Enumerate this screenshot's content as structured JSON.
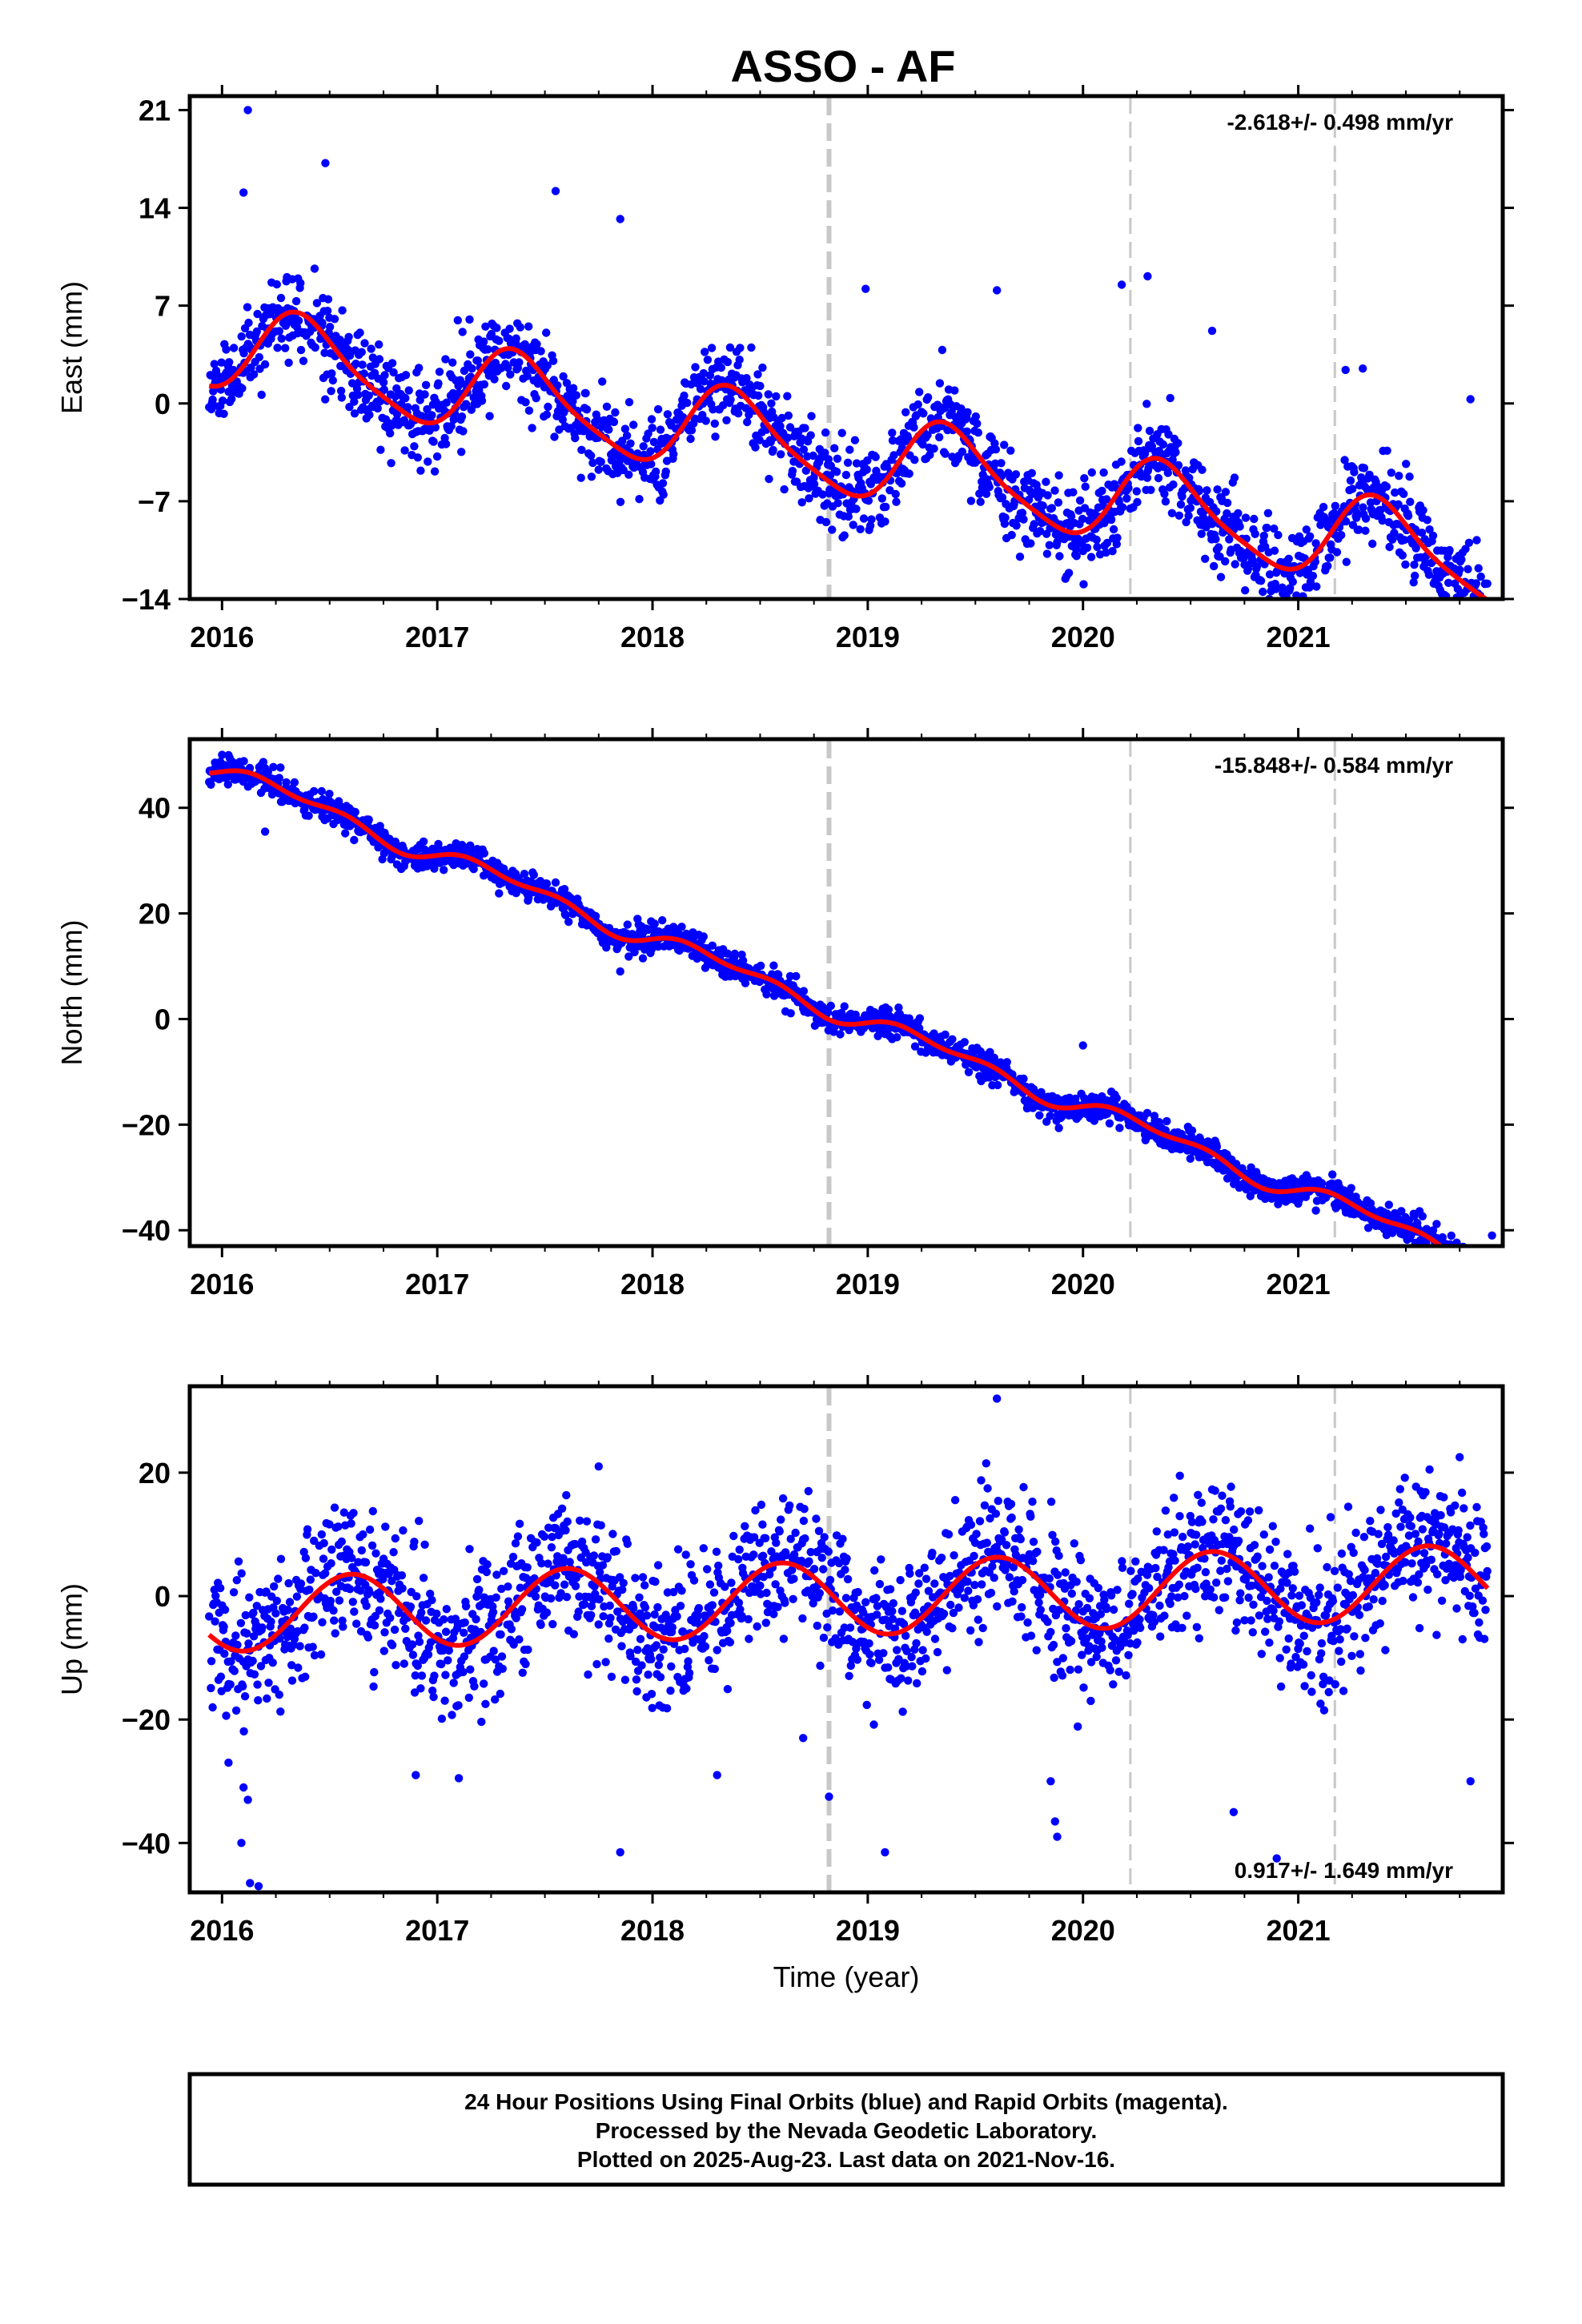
{
  "title": "ASSO - AF",
  "footer": {
    "lines": [
      "24 Hour Positions Using Final Orbits (blue) and Rapid Orbits (magenta).",
      "Processed by the Nevada Geodetic Laboratory.",
      "Plotted on 2025-Aug-23. Last data on 2021-Nov-16."
    ]
  },
  "colors": {
    "points": "#0000ff",
    "model": "#ff0000",
    "event_lines": "#c8c8c8",
    "frame": "#000000"
  },
  "chart_data": [
    {
      "type": "scatter",
      "component": "East",
      "ylabel": "East (mm)",
      "xlabel": "",
      "rate_label": "-2.618+/- 0.498 mm/yr",
      "rate_position": "top-right",
      "xlim": [
        2015.85,
        2021.95
      ],
      "ylim": [
        -14,
        22
      ],
      "x_ticks": [
        2016,
        2017,
        2018,
        2019,
        2020,
        2021
      ],
      "y_ticks": [
        21,
        14,
        7,
        0,
        -7,
        -14
      ],
      "event_lines": [
        {
          "x": 2018.82,
          "style": "major"
        },
        {
          "x": 2020.22,
          "style": "minor"
        },
        {
          "x": 2021.17,
          "style": "minor"
        }
      ],
      "model": {
        "offset": 4.0,
        "trend": -2.618,
        "annual_amp": 3.0,
        "annual_phase": 2016.38,
        "semiannual_amp": 0.6,
        "semiannual_phase": 2016.3,
        "noise": 1.6,
        "seed": 11
      },
      "outliers": [
        [
          2016.12,
          21.0
        ],
        [
          2016.48,
          17.2
        ],
        [
          2016.1,
          15.1
        ],
        [
          2017.55,
          15.2
        ],
        [
          2017.85,
          13.2
        ],
        [
          2018.99,
          8.2
        ],
        [
          2020.18,
          8.5
        ],
        [
          2020.3,
          9.1
        ],
        [
          2020.1,
          -10.2
        ],
        [
          2021.07,
          -11.2
        ],
        [
          2020.6,
          5.2
        ],
        [
          2021.8,
          0.3
        ],
        [
          2016.05,
          0.8
        ],
        [
          2019.6,
          8.1
        ],
        [
          2021.22,
          2.4
        ],
        [
          2021.3,
          2.5
        ]
      ]
    },
    {
      "type": "scatter",
      "component": "North",
      "ylabel": "North (mm)",
      "xlabel": "",
      "rate_label": "-15.848+/- 0.584 mm/yr",
      "rate_position": "top-right",
      "xlim": [
        2015.85,
        2021.95
      ],
      "ylim": [
        -43,
        53
      ],
      "x_ticks": [
        2016,
        2017,
        2018,
        2019,
        2020,
        2021
      ],
      "y_ticks": [
        40,
        20,
        0,
        -20,
        -40
      ],
      "event_lines": [
        {
          "x": 2018.82,
          "style": "major"
        },
        {
          "x": 2020.22,
          "style": "minor"
        },
        {
          "x": 2021.17,
          "style": "minor"
        }
      ],
      "model": {
        "offset": 47.0,
        "trend": -15.848,
        "annual_amp": 1.5,
        "annual_phase": 2016.3,
        "semiannual_amp": 1.0,
        "semiannual_phase": 2016.1,
        "noise": 1.3,
        "seed": 23
      },
      "outliers": [
        [
          2016.2,
          35.5
        ],
        [
          2017.85,
          9.0
        ],
        [
          2020.0,
          -5.0
        ],
        [
          2020.75,
          -31.0
        ],
        [
          2021.9,
          -41.0
        ]
      ]
    },
    {
      "type": "scatter",
      "component": "Up",
      "ylabel": "Up (mm)",
      "xlabel": "Time (year)",
      "rate_label": "0.917+/- 1.649 mm/yr",
      "rate_position": "bottom-right",
      "xlim": [
        2015.85,
        2021.95
      ],
      "ylim": [
        -48,
        34
      ],
      "x_ticks": [
        2016,
        2017,
        2018,
        2019,
        2020,
        2021
      ],
      "y_ticks": [
        20,
        0,
        -20,
        -40
      ],
      "event_lines": [
        {
          "x": 2018.82,
          "style": "major"
        },
        {
          "x": 2020.22,
          "style": "minor"
        },
        {
          "x": 2021.17,
          "style": "minor"
        }
      ],
      "model": {
        "offset": -3.0,
        "trend": 0.917,
        "annual_amp": 6.0,
        "annual_phase": 2016.6,
        "semiannual_amp": 0.0,
        "semiannual_phase": 2016.0,
        "noise": 5.5,
        "seed": 37
      },
      "outliers": [
        [
          2016.1,
          -31.0
        ],
        [
          2016.12,
          -33.0
        ],
        [
          2016.09,
          -40.0
        ],
        [
          2016.13,
          -46.5
        ],
        [
          2016.17,
          -47.0
        ],
        [
          2016.03,
          -27.0
        ],
        [
          2017.85,
          -41.5
        ],
        [
          2018.82,
          -32.5
        ],
        [
          2019.08,
          -41.5
        ],
        [
          2019.6,
          32.0
        ],
        [
          2019.85,
          -30.0
        ],
        [
          2019.87,
          -36.5
        ],
        [
          2019.88,
          -39.0
        ],
        [
          2020.9,
          -42.5
        ],
        [
          2021.8,
          -30.0
        ],
        [
          2021.75,
          22.5
        ],
        [
          2017.75,
          21.0
        ],
        [
          2019.55,
          21.5
        ],
        [
          2020.45,
          19.5
        ],
        [
          2020.7,
          -35.0
        ],
        [
          2016.9,
          -29.0
        ],
        [
          2017.1,
          -29.5
        ],
        [
          2018.3,
          -29.0
        ],
        [
          2018.7,
          -23.0
        ]
      ]
    }
  ]
}
